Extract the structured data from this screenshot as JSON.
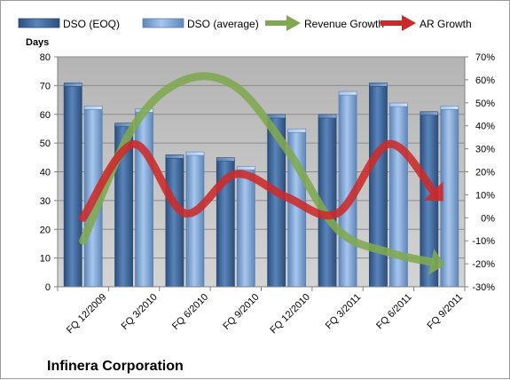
{
  "chart_data": {
    "type": "bar+line",
    "title": "Infinera Corporation",
    "left_axis_title": "Days",
    "categories": [
      "FQ 12/2009",
      "FQ 3/2010",
      "FQ 6/2010",
      "FQ 9/2010",
      "FQ 12/2010",
      "FQ 3/2011",
      "FQ 6/2011",
      "FQ 9/2011"
    ],
    "y_left": {
      "min": 0,
      "max": 80,
      "step": 10
    },
    "y_right": {
      "min": -30,
      "max": 70,
      "step": 10,
      "format": "percent"
    },
    "bar_series": [
      {
        "name": "DSO (EOQ)",
        "color": "#3e6aa3",
        "values": [
          70,
          56,
          45,
          44,
          59,
          59,
          70,
          60
        ]
      },
      {
        "name": "DSO (average)",
        "color": "#8eb4e3",
        "values": [
          62,
          61,
          46,
          41,
          54,
          67,
          63,
          62
        ]
      }
    ],
    "line_series": [
      {
        "name": "Revenue Growth",
        "color": "#80a850",
        "axis": "right",
        "values": [
          -10,
          40,
          60,
          57,
          30,
          -5,
          -15,
          -20
        ]
      },
      {
        "name": "AR Growth",
        "color": "#cc2a2a",
        "axis": "right",
        "values": [
          0,
          32,
          2,
          19,
          9,
          2,
          32,
          9
        ]
      }
    ],
    "plot_background": "#c0c0c0",
    "grid": true,
    "legend_position": "top"
  }
}
